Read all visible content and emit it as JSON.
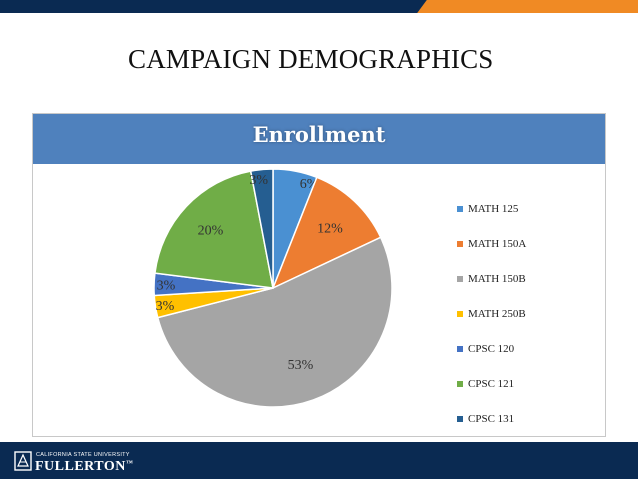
{
  "slide": {
    "title": "CAMPAIGN DEMOGRAPHICS",
    "logo_small": "CALIFORNIA STATE UNIVERSITY",
    "logo_big": "FULLERTON",
    "logo_mark": "™"
  },
  "colors": {
    "top_bar": "#0a2a52",
    "accent": "#f08a24",
    "chart_header": "#4f81bd"
  },
  "chart_data": {
    "type": "pie",
    "title": "Enrollment",
    "legend_position": "right",
    "slices": [
      {
        "label": "MATH 125",
        "value": 6,
        "display": "6%",
        "color": "#4a90d2"
      },
      {
        "label": "MATH 150A",
        "value": 12,
        "display": "12%",
        "color": "#ed7d31"
      },
      {
        "label": "MATH 150B",
        "value": 53,
        "display": "53%",
        "color": "#a5a5a5"
      },
      {
        "label": "MATH 250B",
        "value": 3,
        "display": "3%",
        "color": "#ffc000"
      },
      {
        "label": "CPSC 120",
        "value": 3,
        "display": "3%",
        "color": "#4472c4"
      },
      {
        "label": "CPSC 121",
        "value": 20,
        "display": "20%",
        "color": "#70ad47"
      },
      {
        "label": "CPSC 131",
        "value": 3,
        "display": "3%",
        "color": "#255e91"
      }
    ]
  }
}
